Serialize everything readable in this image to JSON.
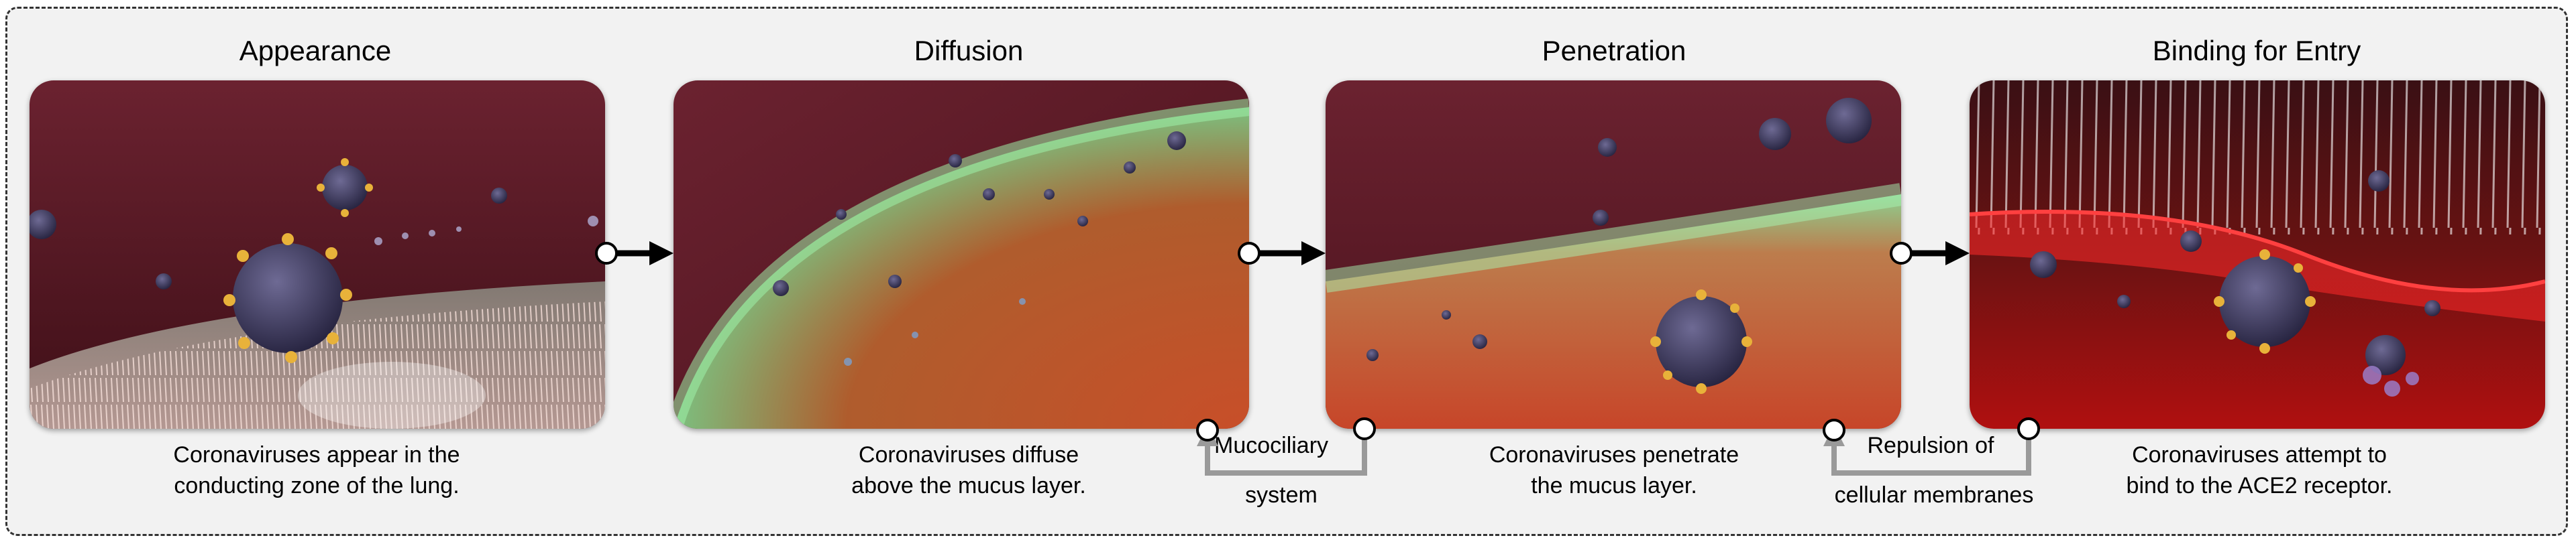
{
  "panels": [
    {
      "title": "Appearance",
      "caption_lines": [
        "Coronaviruses appear in the",
        "conducting zone of the lung."
      ]
    },
    {
      "title": "Diffusion",
      "caption_lines": [
        "Coronaviruses diffuse",
        "above the mucus layer."
      ]
    },
    {
      "title": "Penetration",
      "caption_lines": [
        "Coronaviruses penetrate",
        "the mucus layer."
      ]
    },
    {
      "title": "Binding for Entry",
      "caption_lines": [
        "Coronaviruses attempt to",
        "bind to the ACE2 receptor."
      ]
    }
  ],
  "side_labels": {
    "mucociliary_line1": "Mucociliary",
    "mucociliary_line2": "system",
    "repulsion_line1": "Repulsion of",
    "repulsion_line2": "cellular membranes"
  },
  "colors": {
    "tissue_dark": "#5a1a22",
    "virus": "#3a3658",
    "spike": "#e8b23a",
    "mucus_green": "#7fd38a",
    "cilia": "#f4d9d2",
    "membrane_red": "#e01818",
    "connector_gray": "#9a9a9a"
  }
}
